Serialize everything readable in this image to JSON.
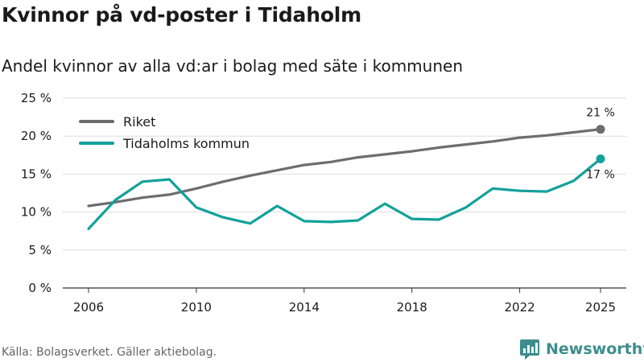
{
  "title": "Kvinnor på vd-poster i Tidaholm",
  "subtitle": "Andel kvinnor av alla vd:ar i bolag med säte i kommunen",
  "source": "Källa: Bolagsverket. Gäller aktiebolag.",
  "brand": {
    "name": "Newsworthy",
    "color": "#3d8d8d"
  },
  "chart_data": {
    "type": "line",
    "title": "Kvinnor på vd-poster i Tidaholm",
    "xlabel": "",
    "ylabel": "",
    "x": [
      2006,
      2007,
      2008,
      2009,
      2010,
      2011,
      2012,
      2013,
      2014,
      2015,
      2016,
      2017,
      2018,
      2019,
      2020,
      2021,
      2022,
      2023,
      2024,
      2025
    ],
    "xticks": [
      2006,
      2010,
      2014,
      2018,
      2022,
      2025
    ],
    "xlim": [
      2006,
      2025
    ],
    "ylim": [
      0,
      25
    ],
    "yticks": [
      0,
      5,
      10,
      15,
      20,
      25
    ],
    "ytick_labels": [
      "0 %",
      "5 %",
      "10 %",
      "15 %",
      "20 %",
      "25 %"
    ],
    "grid": true,
    "legend_position": "top-left",
    "series": [
      {
        "name": "Riket",
        "color": "#6d6c71",
        "values": [
          10.8,
          11.3,
          11.9,
          12.3,
          13.1,
          14.0,
          14.8,
          15.5,
          16.2,
          16.6,
          17.2,
          17.6,
          18.0,
          18.5,
          18.9,
          19.3,
          19.8,
          20.1,
          20.5,
          20.9
        ],
        "end_label": "21 %"
      },
      {
        "name": "Tidaholms kommun",
        "color": "#13a19a",
        "values": [
          7.8,
          11.6,
          14.0,
          14.3,
          10.6,
          9.3,
          8.5,
          10.8,
          8.8,
          8.7,
          8.9,
          11.1,
          9.1,
          9.0,
          10.6,
          13.1,
          12.8,
          12.7,
          14.1,
          17.0
        ],
        "end_label": "17 %"
      }
    ]
  }
}
